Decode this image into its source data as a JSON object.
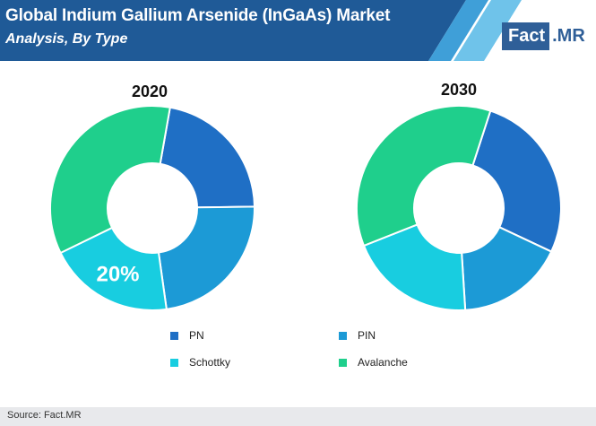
{
  "header": {
    "title": "Global Indium Gallium Arsenide (InGaAs) Market",
    "subtitle": "Analysis, By Type",
    "logo_left": "Fact",
    "logo_right": ".MR"
  },
  "colors": {
    "header_bg": "#1f5a97",
    "stripe_light": "#6fc3ea",
    "stripe_mid": "#3f9fd8"
  },
  "chart_data": [
    {
      "type": "pie",
      "title": "2020",
      "categories": [
        "PN",
        "PIN",
        "Schottky",
        "Avalanche"
      ],
      "values": [
        22,
        23,
        20,
        35
      ],
      "colors": [
        "#1f6fc5",
        "#1c9ad6",
        "#18cde0",
        "#1fcf8c"
      ],
      "data_labels": [
        "",
        "",
        "20%",
        ""
      ]
    },
    {
      "type": "pie",
      "title": "2030",
      "categories": [
        "PN",
        "PIN",
        "Schottky",
        "Avalanche"
      ],
      "values": [
        27,
        17,
        20,
        36
      ],
      "colors": [
        "#1f6fc5",
        "#1c9ad6",
        "#18cde0",
        "#1fcf8c"
      ],
      "data_labels": [
        "",
        "",
        "",
        ""
      ]
    }
  ],
  "legend": [
    {
      "label": "PN",
      "color": "#1f6fc5"
    },
    {
      "label": "PIN",
      "color": "#1c9ad6"
    },
    {
      "label": "Schottky",
      "color": "#18cde0"
    },
    {
      "label": "Avalanche",
      "color": "#1fcf8c"
    }
  ],
  "footer": {
    "source": "Source: Fact.MR"
  }
}
